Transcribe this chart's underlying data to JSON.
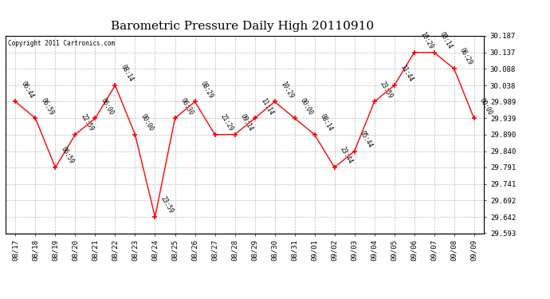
{
  "title": "Barometric Pressure Daily High 20110910",
  "copyright": "Copyright 2011 Cartronics.com",
  "x_labels": [
    "08/17",
    "08/18",
    "08/19",
    "08/20",
    "08/21",
    "08/22",
    "08/23",
    "08/24",
    "08/25",
    "08/26",
    "08/27",
    "08/28",
    "08/29",
    "08/30",
    "08/31",
    "09/01",
    "09/02",
    "09/03",
    "09/04",
    "09/05",
    "09/06",
    "09/07",
    "09/08",
    "09/09"
  ],
  "y_values": [
    29.989,
    29.939,
    29.791,
    29.89,
    29.939,
    30.038,
    29.89,
    29.642,
    29.939,
    29.989,
    29.89,
    29.89,
    29.939,
    29.989,
    29.939,
    29.89,
    29.791,
    29.84,
    29.989,
    30.038,
    30.137,
    30.137,
    30.088,
    29.939
  ],
  "point_labels": [
    "06:44",
    "06:59",
    "06:59",
    "22:59",
    "06:00",
    "08:14",
    "00:00",
    "23:59",
    "06:30",
    "08:29",
    "21:29",
    "09:14",
    "11:14",
    "10:29",
    "00:00",
    "08:14",
    "23:44",
    "05:44",
    "23:59",
    "11:44",
    "10:29",
    "08:14",
    "06:29",
    "00:00"
  ],
  "ylim_min": 29.593,
  "ylim_max": 30.187,
  "y_ticks": [
    29.593,
    29.642,
    29.692,
    29.741,
    29.791,
    29.84,
    29.89,
    29.939,
    29.989,
    30.038,
    30.088,
    30.137,
    30.187
  ],
  "line_color": "red",
  "marker_color": "red",
  "background_color": "white",
  "grid_color": "#bbbbbb",
  "title_fontsize": 11,
  "tick_fontsize": 6.5,
  "point_label_fontsize": 5.5,
  "copyright_fontsize": 5.5
}
